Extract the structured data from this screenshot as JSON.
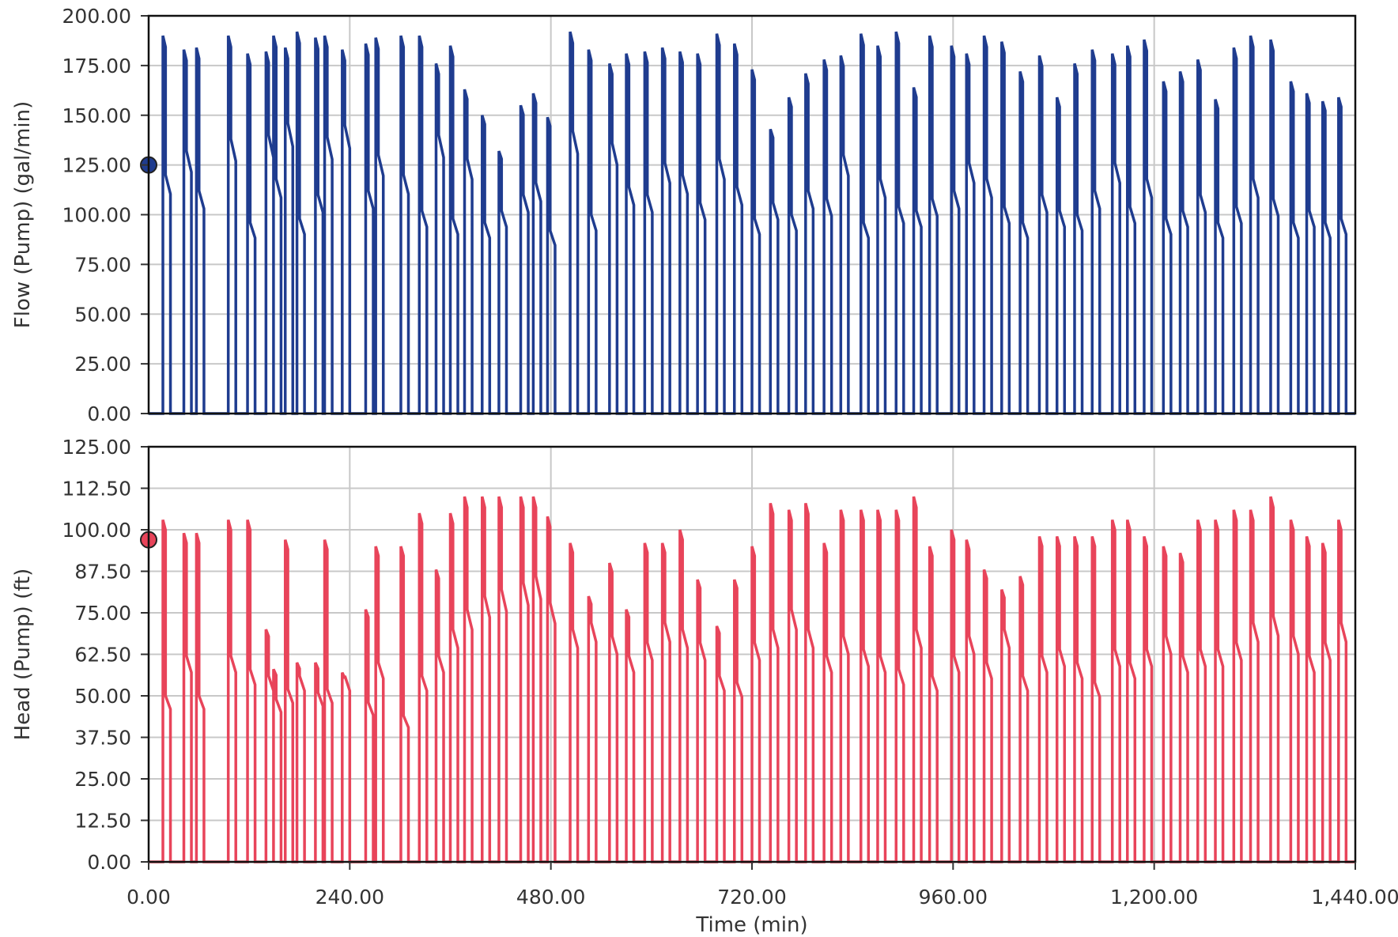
{
  "chart_data": [
    {
      "type": "line",
      "panel": "top",
      "ylabel": "Flow (Pump) (gal/min)",
      "xlabel": "",
      "xlim": [
        0,
        1440
      ],
      "ylim": [
        0,
        200
      ],
      "yticks": [
        0,
        25,
        50,
        75,
        100,
        125,
        150,
        175,
        200
      ],
      "ytick_labels": [
        "0.00",
        "25.00",
        "50.00",
        "75.00",
        "100.00",
        "125.00",
        "150.00",
        "175.00",
        "200.00"
      ],
      "grid": true,
      "line_color": "#1f3c8f",
      "marker": {
        "x": 0,
        "y": 125,
        "color": "#1f3c8f"
      },
      "pulses": {
        "starts": [
          17,
          42,
          57,
          95,
          118,
          140,
          149,
          163,
          177,
          199,
          210,
          231,
          259,
          271,
          301,
          323,
          343,
          360,
          377,
          398,
          418,
          444,
          459,
          476,
          503,
          525,
          550,
          570,
          592,
          613,
          634,
          655,
          678,
          699,
          720,
          742,
          764,
          784,
          806,
          826,
          850,
          870,
          892,
          913,
          932,
          958,
          976,
          997,
          1018,
          1040,
          1063,
          1084,
          1105,
          1126,
          1150,
          1168,
          1188,
          1211,
          1231,
          1252,
          1273,
          1295,
          1315,
          1339,
          1363,
          1382,
          1401,
          1420
        ],
        "duration": 9,
        "peaks": [
          190,
          183,
          184,
          190,
          181,
          182,
          190,
          184,
          192,
          189,
          190,
          183,
          186,
          189,
          190,
          190,
          176,
          185,
          163,
          150,
          132,
          155,
          161,
          149,
          192,
          183,
          176,
          181,
          182,
          184,
          182,
          181,
          191,
          186,
          173,
          143,
          159,
          171,
          178,
          180,
          191,
          185,
          192,
          164,
          190,
          185,
          181,
          190,
          187,
          172,
          180,
          159,
          176,
          183,
          181,
          185,
          188,
          167,
          172,
          178,
          158,
          184,
          190,
          188,
          167,
          161,
          157,
          159
        ],
        "lows": [
          120,
          132,
          112,
          138,
          96,
          140,
          118,
          146,
          98,
          110,
          139,
          145,
          112,
          130,
          120,
          102,
          140,
          98,
          128,
          96,
          102,
          110,
          116,
          92,
          142,
          100,
          136,
          114,
          110,
          126,
          120,
          106,
          128,
          114,
          98,
          106,
          100,
          112,
          108,
          130,
          96,
          118,
          104,
          102,
          108,
          112,
          126,
          118,
          104,
          96,
          110,
          102,
          100,
          112,
          126,
          104,
          118,
          98,
          102,
          110,
          96,
          104,
          118,
          108,
          96,
          102,
          96,
          98
        ]
      }
    },
    {
      "type": "line",
      "panel": "bottom",
      "ylabel": "Head (Pump) (ft)",
      "xlabel": "Time (min)",
      "xlim": [
        0,
        1440
      ],
      "ylim": [
        0,
        125
      ],
      "yticks": [
        0,
        12.5,
        25,
        37.5,
        50,
        62.5,
        75,
        87.5,
        100,
        112.5,
        125
      ],
      "ytick_labels": [
        "0.00",
        "12.50",
        "25.00",
        "37.50",
        "50.00",
        "62.50",
        "75.00",
        "87.50",
        "100.00",
        "112.50",
        "125.00"
      ],
      "xticks": [
        0,
        240,
        480,
        720,
        960,
        1200,
        1440
      ],
      "xtick_labels": [
        "0.00",
        "240.00",
        "480.00",
        "720.00",
        "960.00",
        "1,200.00",
        "1,440.00"
      ],
      "grid": true,
      "line_color": "#e8445a",
      "marker": {
        "x": 0,
        "y": 97,
        "color": "#e8445a"
      },
      "pulses": {
        "starts": [
          17,
          42,
          57,
          95,
          118,
          140,
          149,
          163,
          177,
          199,
          210,
          231,
          259,
          271,
          301,
          323,
          343,
          360,
          377,
          398,
          418,
          444,
          459,
          476,
          503,
          525,
          550,
          570,
          592,
          613,
          634,
          655,
          678,
          699,
          720,
          742,
          764,
          784,
          806,
          826,
          850,
          870,
          892,
          913,
          932,
          958,
          976,
          997,
          1018,
          1040,
          1063,
          1084,
          1105,
          1126,
          1150,
          1168,
          1188,
          1211,
          1231,
          1252,
          1273,
          1295,
          1315,
          1339,
          1363,
          1382,
          1401,
          1420
        ],
        "duration": 9,
        "peaks": [
          103,
          99,
          99,
          103,
          103,
          70,
          58,
          97,
          60,
          60,
          97,
          57,
          76,
          95,
          95,
          105,
          88,
          105,
          110,
          110,
          110,
          110,
          110,
          104,
          96,
          80,
          90,
          76,
          96,
          96,
          100,
          85,
          71,
          85,
          95,
          108,
          106,
          108,
          96,
          106,
          106,
          106,
          106,
          110,
          95,
          100,
          97,
          88,
          82,
          86,
          98,
          98,
          98,
          98,
          103,
          103,
          98,
          95,
          93,
          103,
          103,
          106,
          106,
          110,
          103,
          98,
          96,
          103
        ],
        "lows": [
          50,
          62,
          50,
          62,
          58,
          56,
          49,
          52,
          56,
          51,
          52,
          56,
          48,
          60,
          44,
          56,
          62,
          70,
          76,
          80,
          82,
          84,
          86,
          78,
          70,
          72,
          68,
          62,
          66,
          72,
          70,
          66,
          56,
          54,
          66,
          70,
          76,
          70,
          62,
          68,
          64,
          62,
          58,
          70,
          56,
          62,
          68,
          60,
          70,
          56,
          62,
          64,
          60,
          54,
          64,
          60,
          64,
          68,
          62,
          64,
          64,
          66,
          72,
          74,
          68,
          62,
          66,
          72
        ]
      }
    }
  ]
}
